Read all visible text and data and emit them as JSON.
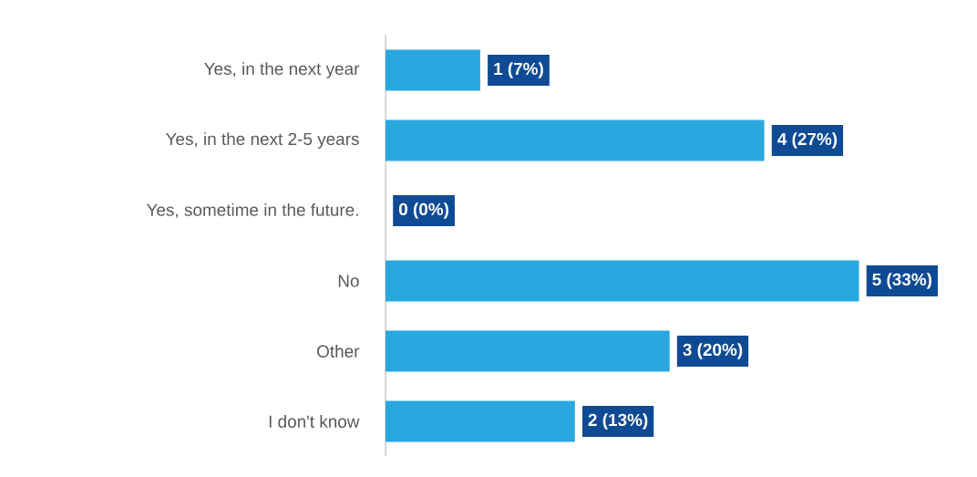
{
  "chart_data": {
    "type": "bar",
    "orientation": "horizontal",
    "categories": [
      "Yes, in the next year",
      "Yes, in the next 2-5 years",
      "Yes, sometime in the future.",
      "No",
      "Other",
      "I don't know"
    ],
    "values": [
      1,
      4,
      0,
      5,
      3,
      2
    ],
    "value_labels": [
      "1  (7%)",
      "4  (27%)",
      "0  (0%)",
      "5  (33%)",
      "3  (20%)",
      "2  (13%)"
    ],
    "color": "#29a8e0"
  }
}
